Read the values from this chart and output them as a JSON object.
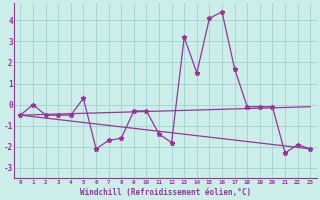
{
  "x": [
    0,
    1,
    2,
    3,
    4,
    5,
    6,
    7,
    8,
    9,
    10,
    11,
    12,
    13,
    14,
    15,
    16,
    17,
    18,
    19,
    20,
    21,
    22,
    23
  ],
  "main_line": [
    -0.5,
    0.0,
    -0.5,
    -0.5,
    -0.5,
    0.3,
    -2.1,
    -1.7,
    -1.6,
    -0.3,
    -0.3,
    -1.4,
    -1.8,
    3.2,
    1.5,
    4.1,
    4.4,
    1.7,
    -0.1,
    -0.1,
    -0.1,
    -2.3,
    -1.9,
    -2.1
  ],
  "trend1_x": [
    0,
    23
  ],
  "trend1_y": [
    -0.5,
    -0.1
  ],
  "trend2_x": [
    0,
    23
  ],
  "trend2_y": [
    -0.5,
    -2.1
  ],
  "line_color": "#993399",
  "bg_color": "#cceee8",
  "grid_color": "#99cccc",
  "ylim": [
    -3.5,
    4.8
  ],
  "yticks": [
    -3,
    -2,
    -1,
    0,
    1,
    2,
    3,
    4
  ],
  "xlim": [
    -0.5,
    23.5
  ],
  "xlabel": "Windchill (Refroidissement éolien,°C)",
  "xtick_labels": [
    "0",
    "1",
    "2",
    "3",
    "4",
    "5",
    "6",
    "7",
    "8",
    "9",
    "10",
    "11",
    "12",
    "13",
    "14",
    "15",
    "16",
    "17",
    "18",
    "19",
    "20",
    "21",
    "22",
    "23"
  ]
}
